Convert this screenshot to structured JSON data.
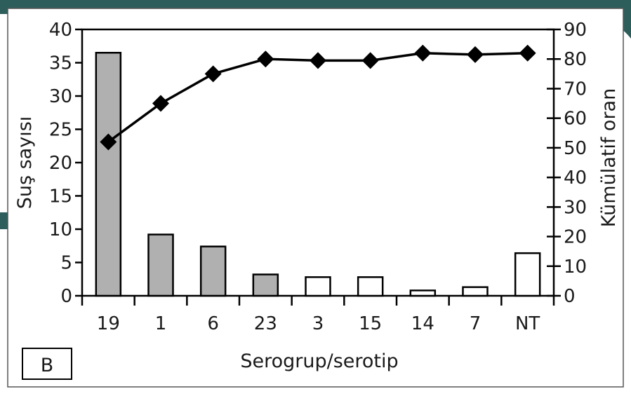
{
  "colors": {
    "slide_teal": "#2e5e5c",
    "filled_bar": "#b0b0b0",
    "open_bar": "#ffffff",
    "line": "#000000"
  },
  "panel_label": "B",
  "chart_data": {
    "type": "bar",
    "categories": [
      "19",
      "1",
      "6",
      "23",
      "3",
      "15",
      "14",
      "7",
      "NT"
    ],
    "bar_values": [
      36.5,
      9.2,
      7.4,
      3.2,
      2.8,
      2.8,
      0.8,
      1.3,
      6.4
    ],
    "bar_fill": [
      "filled",
      "filled",
      "filled",
      "filled",
      "open",
      "open",
      "open",
      "open",
      "open"
    ],
    "line_values": [
      52,
      65,
      75,
      80,
      79.5,
      79.5,
      82,
      81.5,
      82
    ],
    "xlabel": "Serogrup/serotip",
    "ylabel": "Suş sayısı",
    "y2label": "Kümülatif oran",
    "ylim": [
      0,
      40
    ],
    "y2lim": [
      0,
      90
    ],
    "yticks": [
      0,
      5,
      10,
      15,
      20,
      25,
      30,
      35,
      40
    ],
    "y2ticks": [
      0,
      10,
      20,
      30,
      40,
      50,
      60,
      70,
      80,
      90
    ],
    "grid": false,
    "legend": "none"
  }
}
